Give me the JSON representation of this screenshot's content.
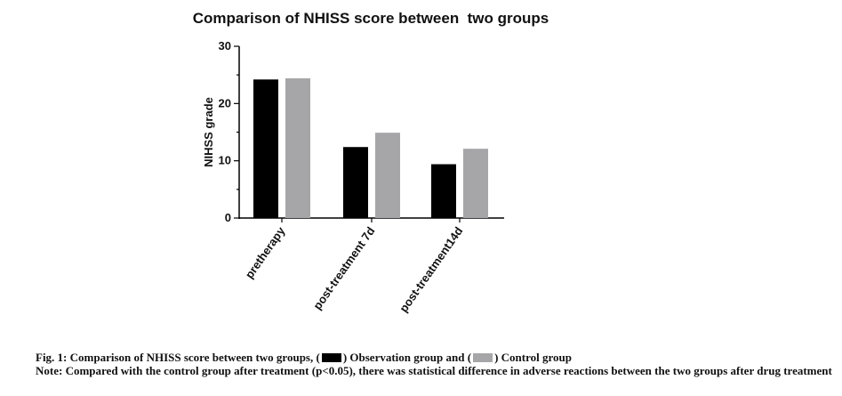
{
  "chart_data": {
    "type": "bar",
    "title": "Comparison of NHISS score between  two groups",
    "xlabel": "",
    "ylabel": "NIHSS grade",
    "ylim": [
      0,
      30
    ],
    "yticks": [
      0,
      10,
      20,
      30
    ],
    "grid": false,
    "categories": [
      "pretherapy",
      "post-treatment 7d",
      "post-treatment14d"
    ],
    "series": [
      {
        "color": "#000000",
        "values": [
          24.2,
          12.4,
          9.4
        ]
      },
      {
        "color": "#a6a6a8",
        "values": [
          24.4,
          14.9,
          12.1
        ]
      }
    ]
  },
  "caption": {
    "line1_prefix": "Fig. 1: Comparison of NHISS score between two groups, (",
    "line1_mid": ") Observation group and (",
    "line1_suffix": ") Control group",
    "note": "Note: Compared with the control group after treatment (p<0.05), there was statistical difference in adverse reactions between the two groups after drug treatment"
  }
}
